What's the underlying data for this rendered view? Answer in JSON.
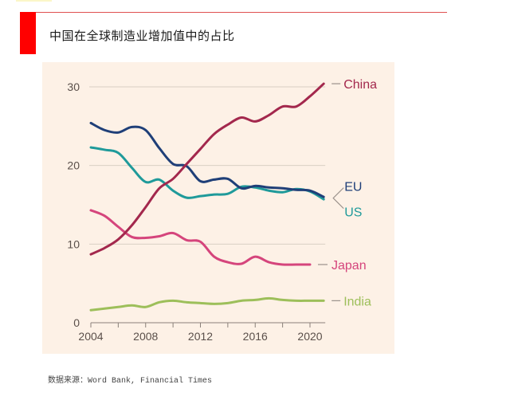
{
  "header": {
    "title": "中国在全球制造业增加值中的占比"
  },
  "footer": {
    "source_label": "数据来源：",
    "source_text": "Word Bank, Financial Times"
  },
  "chart_data": {
    "type": "line",
    "title": "中国在全球制造业增加值中的占比",
    "xlabel": "",
    "ylabel": "",
    "xlim": [
      2004,
      2021
    ],
    "ylim": [
      0,
      30
    ],
    "x_ticks": [
      2004,
      2008,
      2012,
      2016,
      2020
    ],
    "x_minor_ticks": [
      2004,
      2006,
      2008,
      2010,
      2012,
      2014,
      2016,
      2018,
      2020
    ],
    "y_ticks": [
      0,
      10,
      20,
      30
    ],
    "grid": true,
    "legend": "direct-labels-right",
    "series": [
      {
        "name": "China",
        "color": "#a3284d",
        "x": [
          2004,
          2005,
          2006,
          2007,
          2008,
          2009,
          2010,
          2011,
          2012,
          2013,
          2014,
          2015,
          2016,
          2017,
          2018,
          2019,
          2020,
          2021
        ],
        "values": [
          8.7,
          9.5,
          10.6,
          12.4,
          14.7,
          17.1,
          18.3,
          20.2,
          22.1,
          24.0,
          25.2,
          26.1,
          25.6,
          26.4,
          27.5,
          27.5,
          28.8,
          30.4
        ]
      },
      {
        "name": "EU",
        "color": "#1f3f78",
        "x": [
          2004,
          2005,
          2006,
          2007,
          2008,
          2009,
          2010,
          2011,
          2012,
          2013,
          2014,
          2015,
          2016,
          2017,
          2018,
          2019,
          2020,
          2021
        ],
        "values": [
          25.4,
          24.5,
          24.2,
          24.9,
          24.5,
          22.2,
          20.2,
          19.9,
          18.0,
          18.2,
          18.3,
          17.1,
          17.4,
          17.2,
          17.1,
          16.9,
          16.8,
          16.0
        ]
      },
      {
        "name": "US",
        "color": "#1f9a9a",
        "x": [
          2004,
          2005,
          2006,
          2007,
          2008,
          2009,
          2010,
          2011,
          2012,
          2013,
          2014,
          2015,
          2016,
          2017,
          2018,
          2019,
          2020,
          2021
        ],
        "values": [
          22.3,
          22.0,
          21.6,
          19.7,
          17.9,
          18.2,
          16.8,
          15.9,
          16.1,
          16.3,
          16.4,
          17.3,
          17.2,
          16.8,
          16.6,
          17.0,
          16.7,
          15.7
        ]
      },
      {
        "name": "Japan",
        "color": "#d5457c",
        "x": [
          2004,
          2005,
          2006,
          2007,
          2008,
          2009,
          2010,
          2011,
          2012,
          2013,
          2014,
          2015,
          2016,
          2017,
          2018,
          2019,
          2020
        ],
        "values": [
          14.3,
          13.6,
          12.2,
          10.9,
          10.8,
          11.0,
          11.4,
          10.5,
          10.3,
          8.4,
          7.7,
          7.5,
          8.4,
          7.7,
          7.4,
          7.4,
          7.4
        ]
      },
      {
        "name": "India",
        "color": "#9dbf5a",
        "x": [
          2004,
          2005,
          2006,
          2007,
          2008,
          2009,
          2010,
          2011,
          2012,
          2013,
          2014,
          2015,
          2016,
          2017,
          2018,
          2019,
          2020,
          2021
        ],
        "values": [
          1.6,
          1.8,
          2.0,
          2.2,
          2.0,
          2.6,
          2.8,
          2.6,
          2.5,
          2.4,
          2.5,
          2.8,
          2.9,
          3.1,
          2.9,
          2.8,
          2.8,
          2.8
        ]
      }
    ],
    "colors": {
      "grid": "#d9cfc4",
      "axis": "#8a8079",
      "tick_label": "#5a4f4a",
      "panel_bg": "#fdf1e6"
    }
  }
}
